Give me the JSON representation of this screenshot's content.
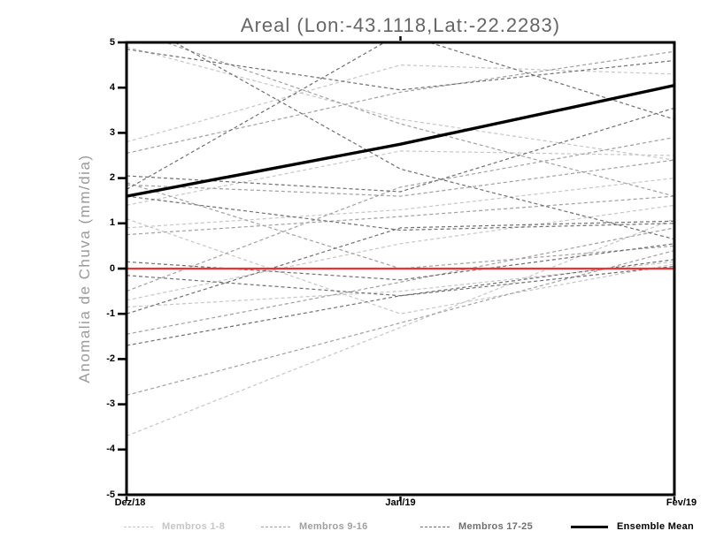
{
  "chart_data": {
    "type": "line",
    "title": "Areal (Lon:-43.1118,Lat:-22.2283)",
    "ylabel": "Anomalia de Chuva (mm/dia)",
    "xlabel": "",
    "x_categories": [
      "Dez/18",
      "Jan/19",
      "Fev/19"
    ],
    "ylim": [
      -5,
      5
    ],
    "y_ticks": [
      5,
      4,
      3,
      2,
      1,
      0,
      -1,
      -2,
      -3,
      -4,
      -5
    ],
    "grid": false,
    "legend_position": "bottom",
    "zero_line": {
      "value": 0,
      "color": "#ee3333"
    },
    "groups": [
      {
        "name": "Membros 1-8",
        "color": "#c6c6c6",
        "style": "dashed",
        "width": 1.2
      },
      {
        "name": "Membros 9-16",
        "color": "#a0a0a0",
        "style": "dashed",
        "width": 1.2
      },
      {
        "name": "Membros 17-25",
        "color": "#6f6f6f",
        "style": "dashed",
        "width": 1.2
      },
      {
        "name": "Ensemble Mean",
        "color": "#000000",
        "style": "solid",
        "width": 3.4
      }
    ],
    "series": [
      {
        "group": 0,
        "values": [
          4.9,
          3.3,
          2.4
        ]
      },
      {
        "group": 0,
        "values": [
          2.8,
          4.5,
          4.3
        ]
      },
      {
        "group": 0,
        "values": [
          1.4,
          2.6,
          2.5
        ]
      },
      {
        "group": 0,
        "values": [
          1.1,
          -1.0,
          0.1
        ]
      },
      {
        "group": 0,
        "values": [
          0.9,
          1.3,
          2.0
        ]
      },
      {
        "group": 0,
        "values": [
          -0.7,
          0.55,
          1.4
        ]
      },
      {
        "group": 0,
        "values": [
          -0.85,
          -0.5,
          0.15
        ]
      },
      {
        "group": 0,
        "values": [
          -3.7,
          -1.3,
          1.1
        ]
      },
      {
        "group": 1,
        "values": [
          5.3,
          3.2,
          1.6
        ]
      },
      {
        "group": 1,
        "values": [
          2.55,
          3.9,
          4.8
        ]
      },
      {
        "group": 1,
        "values": [
          1.85,
          1.6,
          2.4
        ]
      },
      {
        "group": 1,
        "values": [
          0.75,
          1.15,
          1.6
        ]
      },
      {
        "group": 1,
        "values": [
          -0.5,
          1.8,
          2.9
        ]
      },
      {
        "group": 1,
        "values": [
          -1.45,
          -0.3,
          0.9
        ]
      },
      {
        "group": 1,
        "values": [
          -2.8,
          -1.2,
          0.4
        ]
      },
      {
        "group": 1,
        "values": [
          1.9,
          0.0,
          0.5
        ]
      },
      {
        "group": 2,
        "values": [
          5.6,
          2.2,
          0.65
        ]
      },
      {
        "group": 2,
        "values": [
          4.85,
          3.95,
          4.6
        ]
      },
      {
        "group": 2,
        "values": [
          2.05,
          1.7,
          3.55
        ]
      },
      {
        "group": 2,
        "values": [
          1.75,
          5.2,
          3.3
        ]
      },
      {
        "group": 2,
        "values": [
          1.6,
          0.85,
          1.0
        ]
      },
      {
        "group": 2,
        "values": [
          0.15,
          -0.25,
          0.55
        ]
      },
      {
        "group": 2,
        "values": [
          -0.15,
          -0.6,
          0.05
        ]
      },
      {
        "group": 2,
        "values": [
          -1.0,
          0.9,
          1.05
        ]
      },
      {
        "group": 2,
        "values": [
          -1.7,
          -0.6,
          0.2
        ]
      },
      {
        "group": 3,
        "values": [
          1.6,
          2.75,
          4.05
        ]
      }
    ]
  }
}
